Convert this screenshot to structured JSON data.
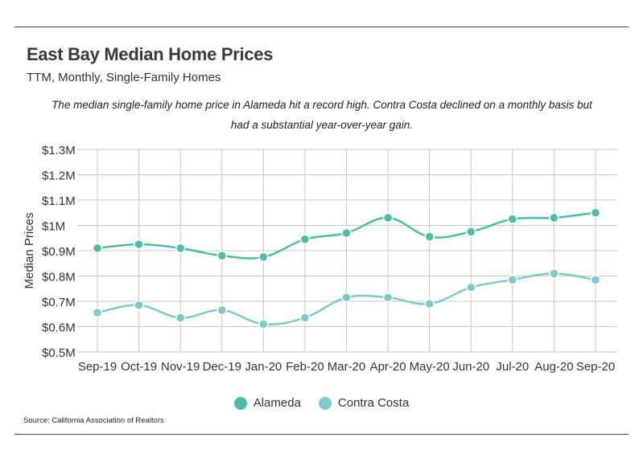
{
  "header": {
    "title": "East Bay Median Home Prices",
    "subtitle": "TTM, Monthly, Single-Family Homes",
    "description": "The median single-family home price in Alameda hit a record high. Contra Costa declined on a monthly basis but had a substantial year-over-year gain."
  },
  "footer": {
    "source": "Source:  California Association of Realtors"
  },
  "chart_data": {
    "type": "line",
    "title": "East Bay Median Home Prices",
    "xlabel": "",
    "ylabel": "Median Prices",
    "ylim": [
      0.5,
      1.3
    ],
    "grid": true,
    "legend_position": "bottom-center",
    "yticks": [
      {
        "value": 0.5,
        "label": "$0.5M"
      },
      {
        "value": 0.6,
        "label": "$0.6M"
      },
      {
        "value": 0.7,
        "label": "$0.7M"
      },
      {
        "value": 0.8,
        "label": "$0.8M"
      },
      {
        "value": 0.9,
        "label": "$0.9M"
      },
      {
        "value": 1.0,
        "label": "$1M"
      },
      {
        "value": 1.1,
        "label": "$1.1M"
      },
      {
        "value": 1.2,
        "label": "$1.2M"
      },
      {
        "value": 1.3,
        "label": "$1.3M"
      }
    ],
    "categories": [
      "Sep-19",
      "Oct-19",
      "Nov-19",
      "Dec-19",
      "Jan-20",
      "Feb-20",
      "Mar-20",
      "Apr-20",
      "May-20",
      "Jun-20",
      "Jul-20",
      "Aug-20",
      "Sep-20"
    ],
    "series": [
      {
        "name": "Alameda",
        "color": "#4dbda5",
        "values": [
          0.91,
          0.925,
          0.91,
          0.88,
          0.875,
          0.945,
          0.97,
          1.03,
          0.955,
          0.975,
          1.025,
          1.03,
          1.05
        ]
      },
      {
        "name": "Contra Costa",
        "color": "#7ccbc8",
        "values": [
          0.655,
          0.685,
          0.635,
          0.665,
          0.61,
          0.635,
          0.715,
          0.715,
          0.69,
          0.755,
          0.785,
          0.81,
          0.785
        ]
      }
    ]
  }
}
